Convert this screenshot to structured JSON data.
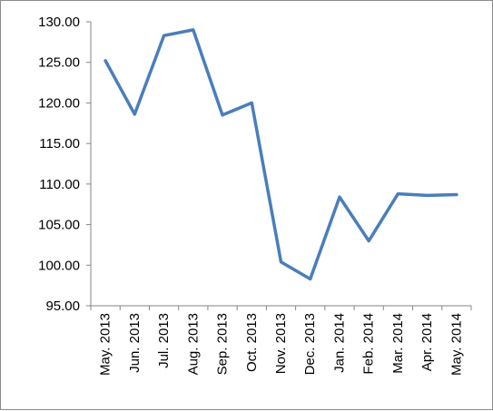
{
  "chart_data": {
    "type": "line",
    "title": "",
    "xlabel": "",
    "ylabel": "",
    "categories": [
      "May. 2013",
      "Jun. 2013",
      "Jul. 2013",
      "Aug. 2013",
      "Sep. 2013",
      "Oct. 2013",
      "Nov. 2013",
      "Dec. 2013",
      "Jan. 2014",
      "Feb. 2014",
      "Mar. 2014",
      "Apr. 2014",
      "May. 2014"
    ],
    "series": [
      {
        "color": "#4a7ebb",
        "values": [
          125.2,
          118.6,
          128.3,
          129.0,
          118.5,
          120.0,
          100.4,
          98.3,
          108.4,
          103.0,
          108.8,
          108.6,
          108.7
        ]
      }
    ],
    "ylim": [
      95,
      130
    ],
    "yticks": [
      "95.00",
      "100.00",
      "105.00",
      "110.00",
      "115.00",
      "120.00",
      "125.00",
      "130.00"
    ],
    "ytick_values": [
      95,
      100,
      105,
      110,
      115,
      120,
      125,
      130
    ],
    "grid": false,
    "legend": "none"
  }
}
